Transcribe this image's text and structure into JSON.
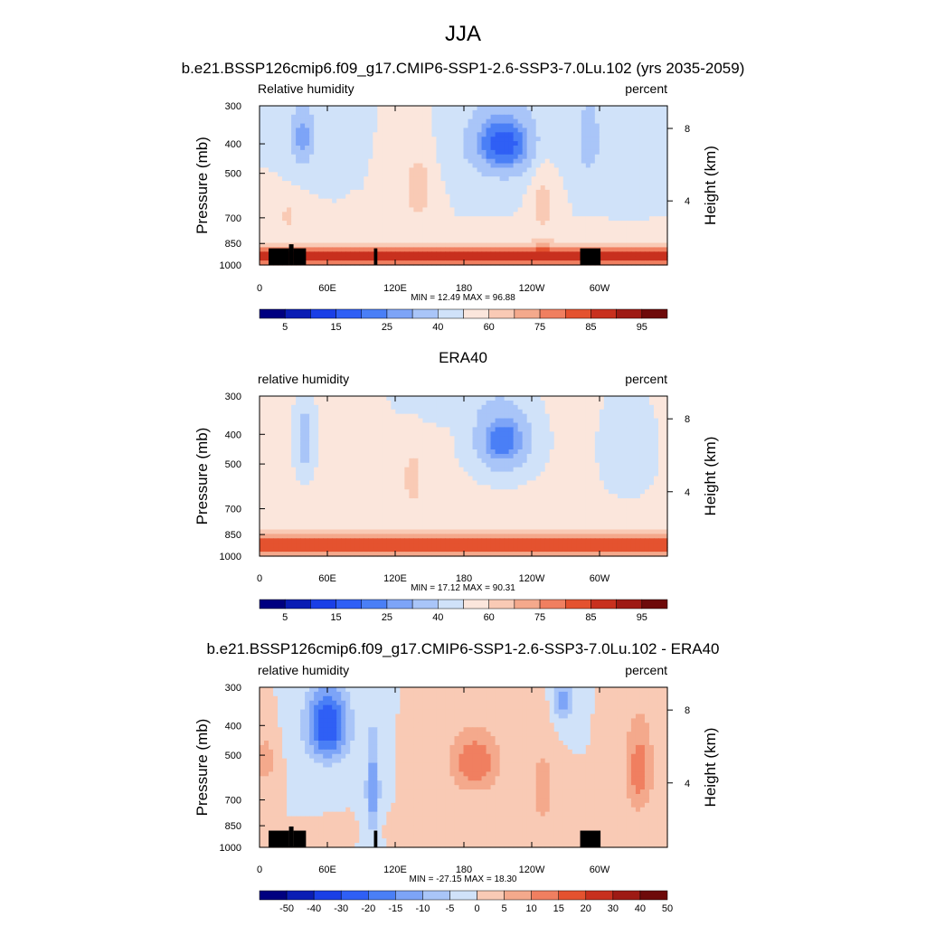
{
  "figure": {
    "title": "JJA"
  },
  "colors": {
    "contour_fill": [
      "#000080",
      "#0a1db4",
      "#1a3fe6",
      "#2f5ff5",
      "#4a7ff6",
      "#7da4f7",
      "#a9c5f8",
      "#d0e2f9",
      "#fbe6dc",
      "#f9cab5",
      "#f4a98c",
      "#f07f60",
      "#e4522f",
      "#c8301e",
      "#9e1a14",
      "#6e0a0a"
    ],
    "land_mask": "#000000"
  },
  "chart_data": [
    {
      "type": "heatmap",
      "title": "b.e21.BSSP126cmip6.f09_g17.CMIP6-SSP1-2.6-SSP3-7.0Lu.102 (yrs 2035-2059)",
      "left_label": "Relative humidity",
      "right_label": "percent",
      "ylabel": "Pressure (mb)",
      "y2label": "Height (km)",
      "x_ticks": [
        "0",
        "60E",
        "120E",
        "180",
        "120W",
        "60W"
      ],
      "y_ticks": [
        "300",
        "400",
        "500",
        "700",
        "850",
        "1000"
      ],
      "y2_ticks": [
        "8",
        "4"
      ],
      "stats": "MIN =  12.49  MAX =  96.88",
      "colorbar_labels": [
        "5",
        "15",
        "25",
        "40",
        "60",
        "75",
        "85",
        "95"
      ],
      "land_mask": true
    },
    {
      "type": "heatmap",
      "title": "ERA40",
      "left_label": "relative humidity",
      "right_label": "percent",
      "ylabel": "Pressure (mb)",
      "y2label": "Height (km)",
      "x_ticks": [
        "0",
        "60E",
        "120E",
        "180",
        "120W",
        "60W"
      ],
      "y_ticks": [
        "300",
        "400",
        "500",
        "700",
        "850",
        "1000"
      ],
      "y2_ticks": [
        "8",
        "4"
      ],
      "stats": "MIN =  17.12  MAX =  90.31",
      "colorbar_labels": [
        "5",
        "15",
        "25",
        "40",
        "60",
        "75",
        "85",
        "95"
      ],
      "land_mask": false
    },
    {
      "type": "heatmap",
      "title": "b.e21.BSSP126cmip6.f09_g17.CMIP6-SSP1-2.6-SSP3-7.0Lu.102 - ERA40",
      "left_label": "relative humidity",
      "right_label": "percent",
      "ylabel": "Pressure (mb)",
      "y2label": "Height (km)",
      "x_ticks": [
        "0",
        "60E",
        "120E",
        "180",
        "120W",
        "60W"
      ],
      "y_ticks": [
        "300",
        "400",
        "500",
        "700",
        "850",
        "1000"
      ],
      "y2_ticks": [
        "8",
        "4"
      ],
      "stats": "MIN = -27.15  MAX =  18.30",
      "colorbar_labels": [
        "-50",
        "-40",
        "-30",
        "-20",
        "-15",
        "-10",
        "-5",
        "0",
        "5",
        "10",
        "15",
        "20",
        "30",
        "40",
        "50"
      ],
      "land_mask": true
    }
  ]
}
